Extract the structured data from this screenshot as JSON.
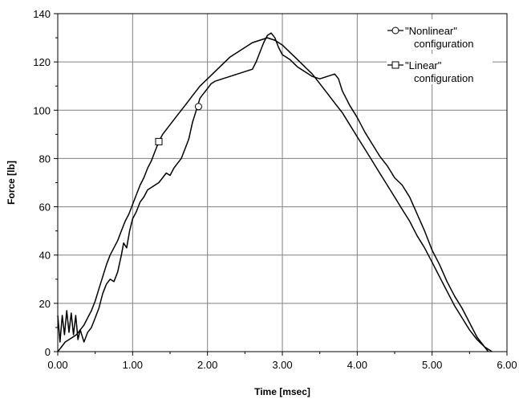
{
  "chart_data": {
    "type": "line",
    "title": "",
    "xlabel": "Time [msec]",
    "ylabel": "Force [lb]",
    "xlim": [
      0,
      6
    ],
    "ylim": [
      0,
      140
    ],
    "x_ticks": [
      0,
      1,
      2,
      3,
      4,
      5,
      6
    ],
    "x_tick_labels": [
      "0.00",
      "1.00",
      "2.00",
      "3.00",
      "4.00",
      "5.00",
      "6.00"
    ],
    "y_ticks": [
      0,
      20,
      40,
      60,
      80,
      100,
      120,
      140
    ],
    "y_tick_labels": [
      "0",
      "20",
      "40",
      "60",
      "80",
      "100",
      "120",
      "140"
    ],
    "grid": true,
    "legend_position": "top-right",
    "series": [
      {
        "name": "\"Nonlinear\" configuration",
        "marker": "circle",
        "marker_point": [
          1.88,
          101.5
        ],
        "color": "#000000",
        "points": [
          [
            0,
            15
          ],
          [
            0.03,
            4
          ],
          [
            0.06,
            15
          ],
          [
            0.09,
            7
          ],
          [
            0.12,
            17
          ],
          [
            0.15,
            8
          ],
          [
            0.18,
            16
          ],
          [
            0.21,
            7
          ],
          [
            0.24,
            15
          ],
          [
            0.27,
            5
          ],
          [
            0.3,
            9
          ],
          [
            0.35,
            4
          ],
          [
            0.4,
            8
          ],
          [
            0.45,
            10
          ],
          [
            0.5,
            14
          ],
          [
            0.55,
            18
          ],
          [
            0.6,
            24
          ],
          [
            0.65,
            28
          ],
          [
            0.7,
            30
          ],
          [
            0.75,
            29
          ],
          [
            0.8,
            33
          ],
          [
            0.85,
            40
          ],
          [
            0.88,
            45
          ],
          [
            0.92,
            43
          ],
          [
            0.96,
            50
          ],
          [
            1.0,
            55
          ],
          [
            1.05,
            58
          ],
          [
            1.1,
            62
          ],
          [
            1.15,
            64
          ],
          [
            1.2,
            67
          ],
          [
            1.25,
            68
          ],
          [
            1.3,
            69
          ],
          [
            1.35,
            70
          ],
          [
            1.4,
            72
          ],
          [
            1.45,
            74
          ],
          [
            1.5,
            73
          ],
          [
            1.55,
            76
          ],
          [
            1.6,
            78
          ],
          [
            1.65,
            80
          ],
          [
            1.7,
            84
          ],
          [
            1.75,
            88
          ],
          [
            1.8,
            95
          ],
          [
            1.85,
            100
          ],
          [
            1.9,
            105
          ],
          [
            1.95,
            107
          ],
          [
            2.0,
            109
          ],
          [
            2.05,
            111
          ],
          [
            2.1,
            112
          ],
          [
            2.2,
            113
          ],
          [
            2.3,
            114
          ],
          [
            2.4,
            115
          ],
          [
            2.5,
            116
          ],
          [
            2.6,
            117
          ],
          [
            2.65,
            120
          ],
          [
            2.7,
            124
          ],
          [
            2.75,
            128
          ],
          [
            2.8,
            131
          ],
          [
            2.85,
            132
          ],
          [
            2.9,
            130
          ],
          [
            2.95,
            126
          ],
          [
            3.0,
            123
          ],
          [
            3.1,
            121
          ],
          [
            3.2,
            118
          ],
          [
            3.3,
            116
          ],
          [
            3.4,
            114
          ],
          [
            3.5,
            113
          ],
          [
            3.6,
            114
          ],
          [
            3.7,
            115
          ],
          [
            3.75,
            113
          ],
          [
            3.8,
            108
          ],
          [
            3.9,
            102
          ],
          [
            4.0,
            97
          ],
          [
            4.1,
            91
          ],
          [
            4.2,
            86
          ],
          [
            4.3,
            81
          ],
          [
            4.4,
            77
          ],
          [
            4.5,
            72
          ],
          [
            4.6,
            69
          ],
          [
            4.7,
            64
          ],
          [
            4.8,
            57
          ],
          [
            4.9,
            50
          ],
          [
            5.0,
            42
          ],
          [
            5.1,
            36
          ],
          [
            5.2,
            29
          ],
          [
            5.3,
            23
          ],
          [
            5.4,
            18
          ],
          [
            5.5,
            12
          ],
          [
            5.6,
            6
          ],
          [
            5.7,
            2
          ],
          [
            5.75,
            0
          ]
        ]
      },
      {
        "name": "\"Linear\" configuration",
        "marker": "square",
        "marker_point": [
          1.35,
          87
        ],
        "color": "#000000",
        "points": [
          [
            0,
            0
          ],
          [
            0.05,
            2
          ],
          [
            0.1,
            4
          ],
          [
            0.15,
            5
          ],
          [
            0.2,
            6
          ],
          [
            0.25,
            7
          ],
          [
            0.3,
            9
          ],
          [
            0.35,
            11
          ],
          [
            0.4,
            14
          ],
          [
            0.45,
            17
          ],
          [
            0.5,
            21
          ],
          [
            0.55,
            26
          ],
          [
            0.6,
            31
          ],
          [
            0.65,
            36
          ],
          [
            0.7,
            40
          ],
          [
            0.75,
            43
          ],
          [
            0.8,
            46
          ],
          [
            0.85,
            50
          ],
          [
            0.9,
            54
          ],
          [
            0.95,
            57
          ],
          [
            1.0,
            61
          ],
          [
            1.05,
            65
          ],
          [
            1.1,
            69
          ],
          [
            1.15,
            72
          ],
          [
            1.2,
            76
          ],
          [
            1.25,
            79
          ],
          [
            1.3,
            83
          ],
          [
            1.35,
            87
          ],
          [
            1.4,
            90
          ],
          [
            1.5,
            94
          ],
          [
            1.6,
            98
          ],
          [
            1.7,
            102
          ],
          [
            1.8,
            106
          ],
          [
            1.9,
            110
          ],
          [
            2.0,
            113
          ],
          [
            2.1,
            116
          ],
          [
            2.2,
            119
          ],
          [
            2.3,
            122
          ],
          [
            2.4,
            124
          ],
          [
            2.5,
            126
          ],
          [
            2.6,
            128
          ],
          [
            2.7,
            129
          ],
          [
            2.8,
            130
          ],
          [
            2.9,
            129
          ],
          [
            3.0,
            127
          ],
          [
            3.1,
            124
          ],
          [
            3.2,
            121
          ],
          [
            3.3,
            118
          ],
          [
            3.4,
            115
          ],
          [
            3.5,
            111
          ],
          [
            3.6,
            107
          ],
          [
            3.7,
            103
          ],
          [
            3.8,
            99
          ],
          [
            3.9,
            94
          ],
          [
            4.0,
            89
          ],
          [
            4.1,
            84
          ],
          [
            4.2,
            79
          ],
          [
            4.3,
            74
          ],
          [
            4.4,
            69
          ],
          [
            4.5,
            64
          ],
          [
            4.6,
            59
          ],
          [
            4.7,
            54
          ],
          [
            4.8,
            48
          ],
          [
            4.9,
            43
          ],
          [
            5.0,
            37
          ],
          [
            5.1,
            31
          ],
          [
            5.2,
            25
          ],
          [
            5.3,
            19
          ],
          [
            5.4,
            14
          ],
          [
            5.5,
            9
          ],
          [
            5.6,
            5
          ],
          [
            5.7,
            2
          ],
          [
            5.8,
            0
          ]
        ]
      }
    ]
  }
}
